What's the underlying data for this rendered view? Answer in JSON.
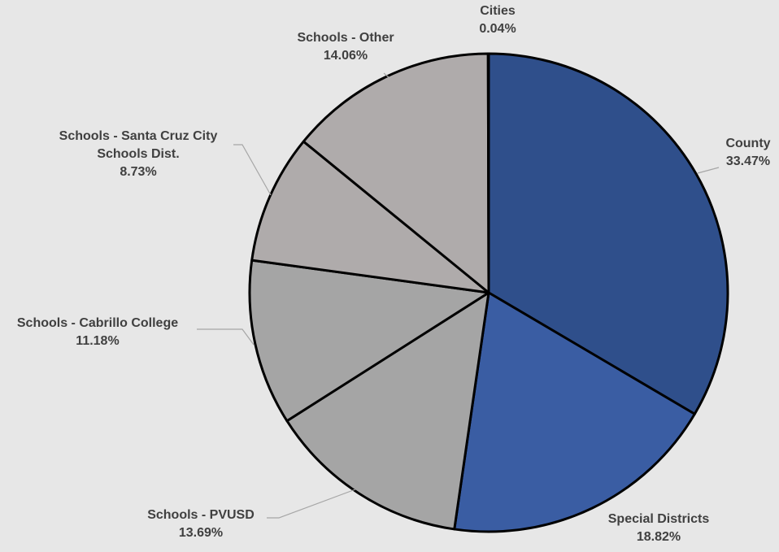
{
  "chart_data": {
    "type": "pie",
    "categories": [
      "County",
      "Special Districts",
      "Schools - PVUSD",
      "Schools - Cabrillo College",
      "Schools - Santa Cruz City Schools Dist.",
      "Schools - Other",
      "Cities"
    ],
    "values": [
      33.47,
      18.82,
      13.69,
      11.18,
      8.73,
      14.06,
      0.04
    ],
    "value_labels": [
      "33.47%",
      "18.82%",
      "13.69%",
      "11.18%",
      "8.73%",
      "14.06%",
      "0.04%"
    ],
    "colors": [
      "#2f4f8b",
      "#3a5da3",
      "#a5a5a5",
      "#a5a5a5",
      "#afabab",
      "#afabab",
      "#2f4f8b"
    ]
  }
}
